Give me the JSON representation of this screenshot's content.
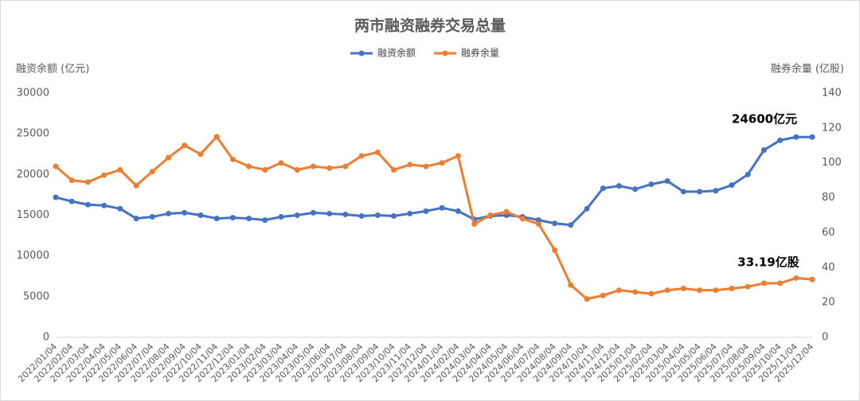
{
  "chart_data": {
    "type": "line",
    "title": "两市融资融券交易总量",
    "y_label": "融资余额 (亿元)",
    "y2_label": "融券余量 (亿股)",
    "annotations": [
      "24600亿元",
      "33.19亿股"
    ],
    "categories": [
      "2022/01/04",
      "2022/02/04",
      "2022/03/04",
      "2022/04/04",
      "2022/05/04",
      "2022/06/04",
      "2022/07/04",
      "2022/08/04",
      "2022/09/04",
      "2022/10/04",
      "2022/11/04",
      "2022/12/04",
      "2023/01/04",
      "2023/02/04",
      "2023/03/04",
      "2023/04/04",
      "2023/05/04",
      "2023/06/04",
      "2023/07/04",
      "2023/08/04",
      "2023/09/04",
      "2023/10/04",
      "2023/11/04",
      "2023/12/04",
      "2024/01/04",
      "2024/02/04",
      "2024/03/04",
      "2024/04/04",
      "2024/05/04",
      "2024/06/04",
      "2024/07/04",
      "2024/08/04",
      "2024/09/04",
      "2024/10/04",
      "2024/11/04",
      "2024/12/04",
      "2025/01/04",
      "2025/02/04",
      "2025/03/04",
      "2025/04/04",
      "2025/05/04",
      "2025/06/04",
      "2025/07/04",
      "2025/08/04",
      "2025/09/04",
      "2025/10/04",
      "2025/11/04",
      "2025/12/04"
    ],
    "series": [
      {
        "name": "融资余额",
        "color": "#4472c4",
        "axis": "y",
        "values": [
          17200,
          16700,
          16300,
          16200,
          15800,
          14600,
          14800,
          15200,
          15300,
          15000,
          14600,
          14700,
          14600,
          14400,
          14800,
          15000,
          15300,
          15200,
          15100,
          14900,
          15000,
          14900,
          15200,
          15500,
          15900,
          15500,
          14500,
          14900,
          15000,
          14800,
          14400,
          14000,
          13800,
          15800,
          18300,
          18600,
          18200,
          18800,
          19200,
          17900,
          17900,
          18000,
          18700,
          20000,
          23000,
          24200,
          24600,
          24600
        ]
      },
      {
        "name": "融券余量",
        "color": "#ed7d31",
        "axis": "y2",
        "values": [
          98,
          90,
          89,
          93,
          96,
          87,
          95,
          103,
          110,
          105,
          115,
          102,
          98,
          96,
          100,
          96,
          98,
          97,
          98,
          104,
          106,
          96,
          99,
          98,
          100,
          104,
          65,
          70,
          72,
          68,
          65,
          50,
          30,
          22,
          24,
          27,
          26,
          25,
          27,
          28,
          27,
          27,
          28,
          29,
          31,
          31,
          34,
          33.19
        ]
      }
    ],
    "ylim": [
      0,
      30000
    ],
    "yticks": [
      0,
      5000,
      10000,
      15000,
      20000,
      25000,
      30000
    ],
    "y2lim": [
      0,
      140
    ],
    "y2ticks": [
      0,
      20,
      40,
      60,
      80,
      100,
      120,
      140
    ],
    "grid": false,
    "legend": "top"
  }
}
